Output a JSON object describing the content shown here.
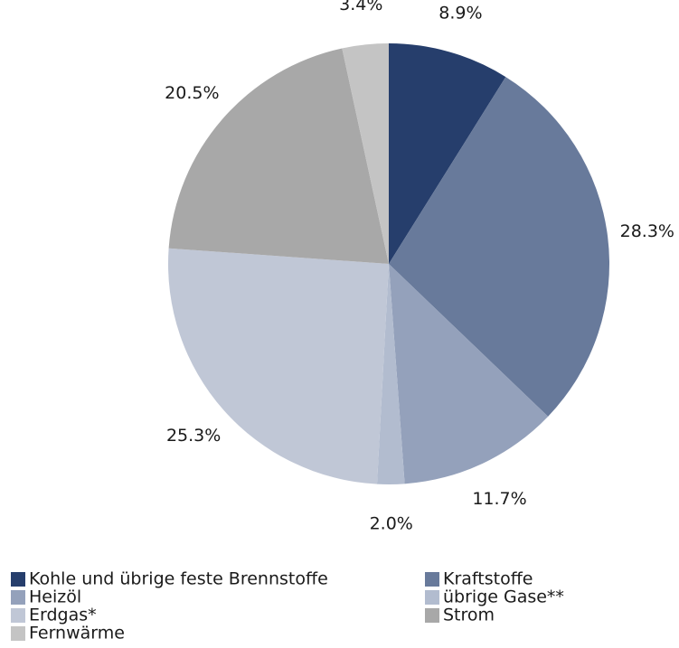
{
  "chart_data": {
    "type": "pie",
    "categories": [
      "Kohle und übrige feste Brennstoffe",
      "Kraftstoffe",
      "Heizöl",
      "übrige Gase**",
      "Erdgas*",
      "Strom",
      "Fernwärme"
    ],
    "values": [
      8.9,
      28.3,
      11.7,
      2.0,
      25.3,
      20.5,
      3.4
    ],
    "value_labels": [
      "8.9%",
      "28.3%",
      "11.7%",
      "2.0%",
      "25.3%",
      "20.5%",
      "3.4%"
    ],
    "colors": [
      "#263e6c",
      "#687a9b",
      "#94a1bb",
      "#b2bccf",
      "#c0c7d6",
      "#a8a8a8",
      "#c4c4c4"
    ]
  }
}
